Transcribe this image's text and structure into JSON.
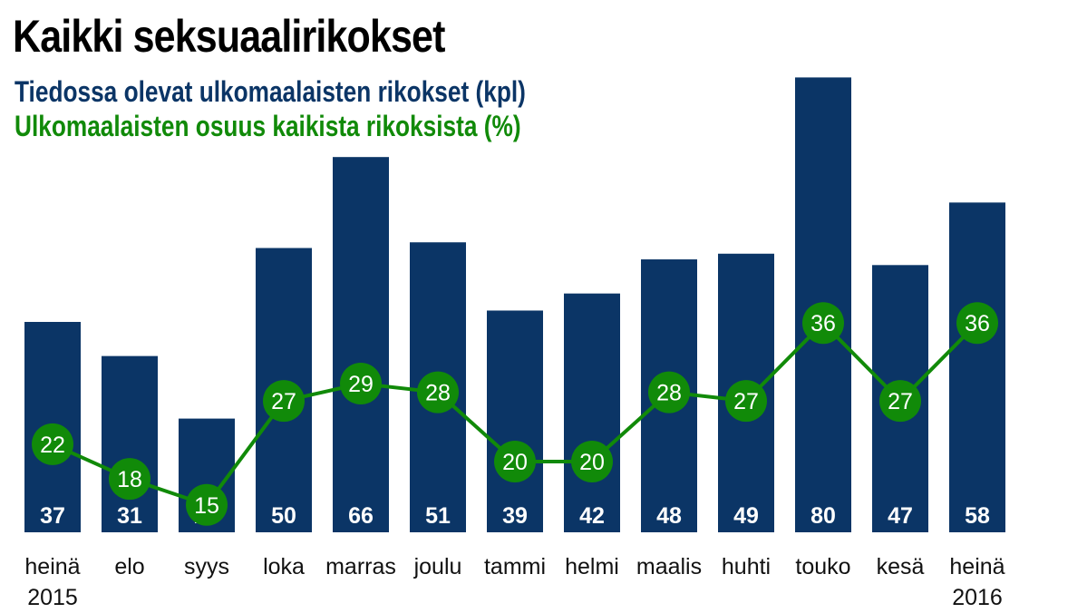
{
  "chart_data": {
    "type": "bar",
    "title": "Kaikki seksuaalirikokset",
    "categories": [
      [
        "heinä",
        "2015"
      ],
      [
        "elo"
      ],
      [
        "syys"
      ],
      [
        "loka"
      ],
      [
        "marras"
      ],
      [
        "joulu"
      ],
      [
        "tammi"
      ],
      [
        "helmi"
      ],
      [
        "maalis"
      ],
      [
        "huhti"
      ],
      [
        "touko"
      ],
      [
        "kesä"
      ],
      [
        "heinä",
        "2016"
      ]
    ],
    "series": [
      {
        "name": "Tiedossa olevat ulkomaalaisten rikokset (kpl)",
        "type": "bar",
        "color": "#0b3566",
        "values": [
          37,
          31,
          20,
          50,
          66,
          51,
          39,
          42,
          48,
          49,
          80,
          47,
          58
        ]
      },
      {
        "name": "Ulkomaalaisten osuus kaikista rikoksista (%)",
        "type": "line",
        "color": "#118a09",
        "values": [
          22,
          18,
          15,
          27,
          29,
          28,
          20,
          20,
          28,
          27,
          36,
          27,
          36
        ]
      }
    ],
    "grid": false,
    "legend": "top-left, as colored subtitle lines"
  }
}
